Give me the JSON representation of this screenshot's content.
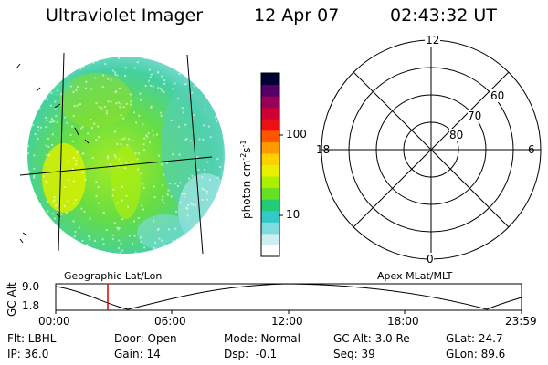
{
  "header": {
    "title": "Ultraviolet Imager",
    "date": "12 Apr 07",
    "time": "02:43:32 UT"
  },
  "colorbar": {
    "unit_label": "photon cm",
    "unit_sup1": "-2",
    "unit_s": "s",
    "unit_sup2": "-1",
    "ticks": [
      "100",
      "10"
    ],
    "colors": [
      "#ffffff",
      "#cdeff0",
      "#7fdcdc",
      "#33c9c9",
      "#22cc77",
      "#66e022",
      "#aaf000",
      "#e8f000",
      "#ffd000",
      "#ff9900",
      "#ff5500",
      "#ee1111",
      "#cc0033",
      "#99005a",
      "#550066",
      "#000033"
    ]
  },
  "left_panel": {
    "label": "Geographic Lat/Lon"
  },
  "polar_panel": {
    "label": "Apex MLat/MLT",
    "mlt_labels": {
      "top": "12",
      "left": "18",
      "right": "6",
      "bottom": "0"
    },
    "lat_labels": [
      "60",
      "70",
      "80"
    ]
  },
  "gc_alt_plot": {
    "ylabel": "GC Alt",
    "yticks": [
      "9.0",
      "1.8"
    ],
    "xticks": [
      "00:00",
      "06:00",
      "12:00",
      "18:00",
      "23:59"
    ],
    "cursor_color": "#dd0000"
  },
  "footer": {
    "row1": [
      "Flt: LBHL",
      "Door: Open",
      "Mode: Normal",
      "GC Alt: 3.0 Re",
      "GLat: 24.7"
    ],
    "row2": [
      "IP: 36.0",
      "Gain: 14",
      "Dsp:  -0.1",
      "Seq: 39",
      "GLon: 89.6"
    ]
  }
}
